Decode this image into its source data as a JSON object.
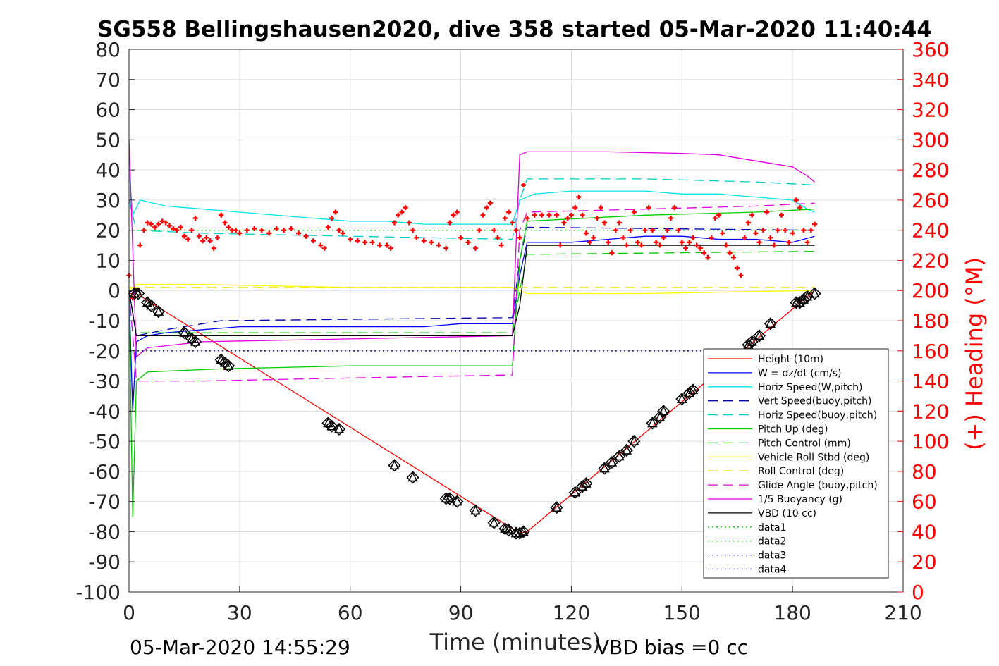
{
  "chart_data": {
    "type": "line",
    "title": "SG558 Bellingshausen2020, dive 358 started 05-Mar-2020 11:40:44",
    "xlabel": "Time (minutes)",
    "ylabel_right": "(+) Heading (°M)",
    "footer_left": "05-Mar-2020 14:55:29",
    "footer_right": "VBD bias =0 cc",
    "xlim": [
      0,
      210
    ],
    "ylim": [
      -100,
      80
    ],
    "ylim_right": [
      0,
      360
    ],
    "x_ticks": [
      0,
      30,
      60,
      90,
      120,
      150,
      180,
      210
    ],
    "y_ticks": [
      80,
      70,
      60,
      50,
      40,
      30,
      20,
      10,
      0,
      -10,
      -20,
      -30,
      -40,
      -50,
      -60,
      -70,
      -80,
      -90,
      -100
    ],
    "y_ticks_right": [
      360,
      340,
      320,
      300,
      280,
      260,
      240,
      220,
      200,
      180,
      160,
      140,
      120,
      100,
      80,
      60,
      40,
      20,
      0
    ],
    "grid": true,
    "legend_placement": "bottom-right",
    "legend": [
      {
        "label": "Height (10m)",
        "color": "#ff0000",
        "dash": "solid"
      },
      {
        "label": "W = dz/dt (cm/s)",
        "color": "#0000ff",
        "dash": "solid"
      },
      {
        "label": "Horiz Speed(W,pitch)",
        "color": "#00e5e5",
        "dash": "solid"
      },
      {
        "label": "Vert Speed(buoy,pitch)",
        "color": "#0000aa",
        "dash": "dashed"
      },
      {
        "label": "Horiz Speed(buoy,pitch)",
        "color": "#00cccc",
        "dash": "dashed"
      },
      {
        "label": "Pitch Up (deg)",
        "color": "#00cc00",
        "dash": "solid"
      },
      {
        "label": "Pitch Control (mm)",
        "color": "#00cc00",
        "dash": "dashed"
      },
      {
        "label": "Vehicle Roll Stbd (deg)",
        "color": "#ffff00",
        "dash": "solid"
      },
      {
        "label": "Roll Control (deg)",
        "color": "#e6e600",
        "dash": "dashed"
      },
      {
        "label": "Glide Angle (buoy,pitch)",
        "color": "#e000e0",
        "dash": "dashed"
      },
      {
        "label": "1/5 Buoyancy (g)",
        "color": "#e000e0",
        "dash": "solid"
      },
      {
        "label": "VBD (10 cc)",
        "color": "#000000",
        "dash": "solid"
      },
      {
        "label": "data1",
        "color": "#00cc00",
        "dash": "dotted"
      },
      {
        "label": "data2",
        "color": "#00cc00",
        "dash": "dotted"
      },
      {
        "label": "data3",
        "color": "#0000aa",
        "dash": "dotted"
      },
      {
        "label": "data4",
        "color": "#0000aa",
        "dash": "dotted"
      }
    ],
    "series": [
      {
        "name": "Height (10m)",
        "color": "#ff0000",
        "dash": "solid",
        "x": [
          0,
          2,
          106,
          108,
          186
        ],
        "y": [
          -1,
          -1,
          -80.5,
          -80,
          0
        ]
      },
      {
        "name": "W = dz/dt (cm/s)",
        "color": "#0000ff",
        "dash": "solid",
        "x": [
          0,
          1,
          2,
          5,
          10,
          20,
          30,
          40,
          50,
          60,
          70,
          80,
          90,
          100,
          104,
          106,
          108,
          110,
          120,
          130,
          140,
          150,
          160,
          170,
          180,
          186
        ],
        "y": [
          0,
          -40,
          -17,
          -15,
          -14,
          -13,
          -12,
          -12,
          -12,
          -12,
          -12,
          -12,
          -11,
          -11,
          -11,
          5,
          16,
          16,
          16,
          17,
          18,
          18,
          17,
          17,
          16,
          18
        ]
      },
      {
        "name": "Horiz Speed(W,pitch)",
        "color": "#00e5e5",
        "dash": "solid",
        "x": [
          0,
          1,
          3,
          10,
          20,
          30,
          40,
          50,
          60,
          70,
          80,
          90,
          100,
          104,
          106,
          108,
          110,
          120,
          130,
          140,
          150,
          160,
          170,
          180,
          184,
          186
        ],
        "y": [
          40,
          25,
          30,
          28,
          27,
          26,
          25,
          24,
          23,
          23,
          22,
          22,
          22,
          22,
          30,
          31,
          32,
          33,
          33,
          33,
          32,
          32,
          31,
          30,
          27,
          26
        ]
      },
      {
        "name": "Vert Speed(buoy,pitch)",
        "color": "#0000aa",
        "dash": "dashed",
        "x": [
          0,
          2,
          10,
          20,
          25,
          104,
          106,
          108,
          186
        ],
        "y": [
          0,
          -15,
          -13,
          -11,
          -10,
          -9,
          10,
          21,
          20
        ]
      },
      {
        "name": "Horiz Speed(buoy,pitch)",
        "color": "#00cccc",
        "dash": "dashed",
        "x": [
          0,
          2,
          20,
          60,
          104,
          106,
          108,
          140,
          170,
          186
        ],
        "y": [
          30,
          20,
          19,
          18,
          17,
          30,
          37,
          37,
          36,
          35
        ]
      },
      {
        "name": "Pitch Up (deg)",
        "color": "#00cc00",
        "dash": "solid",
        "x": [
          0,
          1,
          2,
          5,
          25,
          60,
          104,
          106,
          108,
          140,
          170,
          186
        ],
        "y": [
          0,
          -75,
          -30,
          -27,
          -26,
          -25,
          -25,
          10,
          23,
          25,
          26,
          27
        ]
      },
      {
        "name": "Pitch Control (mm)",
        "color": "#00cc00",
        "dash": "dashed",
        "x": [
          0,
          2,
          104,
          106,
          108,
          186
        ],
        "y": [
          0,
          -14,
          -14,
          0,
          12,
          13
        ]
      },
      {
        "name": "Vehicle Roll Stbd (deg)",
        "color": "#ffff00",
        "dash": "solid",
        "x": [
          0,
          2,
          20,
          60,
          104,
          106,
          108,
          140,
          186
        ],
        "y": [
          0,
          2,
          2,
          1,
          1,
          0,
          -1,
          -1,
          0
        ]
      },
      {
        "name": "Roll Control (deg)",
        "color": "#e6e600",
        "dash": "dashed",
        "x": [
          0,
          186
        ],
        "y": [
          1,
          1
        ]
      },
      {
        "name": "Glide Angle (buoy,pitch)",
        "color": "#e000e0",
        "dash": "dashed",
        "x": [
          0,
          2,
          20,
          60,
          104,
          106,
          108,
          140,
          170,
          186
        ],
        "y": [
          0,
          -30,
          -30,
          -29,
          -28,
          20,
          26,
          27,
          28,
          29
        ]
      },
      {
        "name": "1/5 Buoyancy (g)",
        "color": "#e000e0",
        "dash": "solid",
        "x": [
          0,
          2,
          5,
          20,
          104,
          106,
          108,
          130,
          150,
          160,
          170,
          180,
          184,
          186
        ],
        "y": [
          50,
          -22,
          -19,
          -17,
          -15,
          45,
          46,
          46,
          45.5,
          45,
          43,
          41,
          38,
          36
        ]
      },
      {
        "name": "VBD (10 cc)",
        "color": "#000000",
        "dash": "solid",
        "x": [
          0,
          2,
          104,
          106,
          108,
          186
        ],
        "y": [
          0,
          -15,
          -15,
          -5,
          15,
          15
        ]
      },
      {
        "name": "data1",
        "color": "#00cc00",
        "dash": "dotted",
        "x": [
          0,
          186
        ],
        "y": [
          20,
          20
        ]
      },
      {
        "name": "data4",
        "color": "#0000aa",
        "dash": "dotted",
        "x": [
          0,
          186
        ],
        "y": [
          -20,
          -20
        ]
      }
    ],
    "heading_series": {
      "name": "(+) Heading (°M)",
      "color": "#ff0000",
      "x": [
        0,
        1,
        2,
        3,
        4,
        5,
        6,
        7,
        8,
        9,
        10,
        11,
        12,
        13,
        14,
        15,
        16,
        17,
        18,
        19,
        20,
        21,
        22,
        23,
        24,
        25,
        26,
        27,
        28,
        29,
        30,
        32,
        34,
        36,
        38,
        40,
        42,
        44,
        46,
        48,
        50,
        52,
        53,
        54,
        55,
        56,
        57,
        58,
        60,
        62,
        64,
        66,
        68,
        70,
        71,
        72,
        73,
        74,
        75,
        76,
        77,
        78,
        80,
        82,
        84,
        86,
        87,
        88,
        89,
        90,
        92,
        94,
        95,
        96,
        97,
        98,
        99,
        100,
        101,
        102,
        103,
        104,
        105,
        106,
        107,
        108,
        110,
        112,
        114,
        116,
        117,
        118,
        119,
        120,
        121,
        122,
        123,
        124,
        125,
        126,
        127,
        128,
        129,
        130,
        131,
        132,
        133,
        134,
        135,
        136,
        137,
        138,
        139,
        140,
        141,
        142,
        143,
        144,
        145,
        146,
        147,
        148,
        149,
        150,
        151,
        152,
        153,
        154,
        155,
        156,
        157,
        158,
        159,
        160,
        161,
        162,
        163,
        164,
        165,
        166,
        167,
        168,
        169,
        170,
        171,
        172,
        173,
        174,
        175,
        176,
        177,
        178,
        179,
        180,
        181,
        182,
        183,
        184,
        185,
        186
      ],
      "y": [
        210,
        195,
        200,
        230,
        240,
        245,
        244,
        242,
        244,
        246,
        245,
        243,
        241,
        240,
        242,
        236,
        234,
        240,
        248,
        236,
        233,
        235,
        233,
        228,
        235,
        250,
        245,
        242,
        240,
        240,
        238,
        240,
        241,
        240,
        238,
        241,
        240,
        241,
        238,
        236,
        233,
        230,
        228,
        242,
        248,
        252,
        240,
        238,
        234,
        233,
        232,
        232,
        230,
        230,
        228,
        245,
        250,
        252,
        255,
        245,
        240,
        235,
        233,
        232,
        230,
        228,
        245,
        250,
        252,
        235,
        232,
        228,
        240,
        250,
        255,
        258,
        240,
        235,
        230,
        248,
        252,
        245,
        240,
        235,
        270,
        248,
        250,
        250,
        250,
        250,
        230,
        245,
        248,
        250,
        255,
        262,
        250,
        238,
        232,
        235,
        248,
        255,
        245,
        232,
        225,
        240,
        245,
        235,
        230,
        240,
        252,
        232,
        230,
        240,
        255,
        240,
        232,
        230,
        235,
        240,
        248,
        255,
        240,
        232,
        228,
        232,
        235,
        230,
        228,
        225,
        222,
        235,
        248,
        250,
        238,
        230,
        225,
        222,
        215,
        210,
        235,
        245,
        250,
        238,
        232,
        240,
        252,
        235,
        230,
        240,
        250,
        240,
        232,
        238,
        260,
        255,
        240,
        232,
        240,
        244
      ]
    },
    "depth_markers": {
      "x": [
        1.5,
        2.5,
        5,
        6,
        8,
        15,
        17,
        18,
        25,
        26,
        27,
        54,
        55,
        57,
        72,
        77,
        86,
        87,
        89,
        94,
        99,
        102,
        103,
        105,
        106,
        107,
        116,
        121,
        123,
        124,
        129,
        131,
        133,
        135,
        137,
        142,
        144,
        145,
        150,
        152,
        153,
        168,
        169,
        171,
        174,
        181,
        182,
        183,
        184,
        186
      ],
      "y": [
        -1,
        -1,
        -4,
        -5,
        -7,
        -14,
        -16,
        -17,
        -23,
        -24,
        -25,
        -44,
        -45,
        -46,
        -58,
        -62,
        -69,
        -69,
        -70,
        -73,
        -77,
        -79,
        -79.5,
        -80.5,
        -80.5,
        -80,
        -72,
        -67,
        -65,
        -64,
        -59,
        -57,
        -55,
        -53,
        -50,
        -44,
        -42,
        -40,
        -36,
        -34,
        -33,
        -18,
        -17,
        -15,
        -11,
        -4,
        -4,
        -3,
        -2,
        -1
      ]
    }
  }
}
